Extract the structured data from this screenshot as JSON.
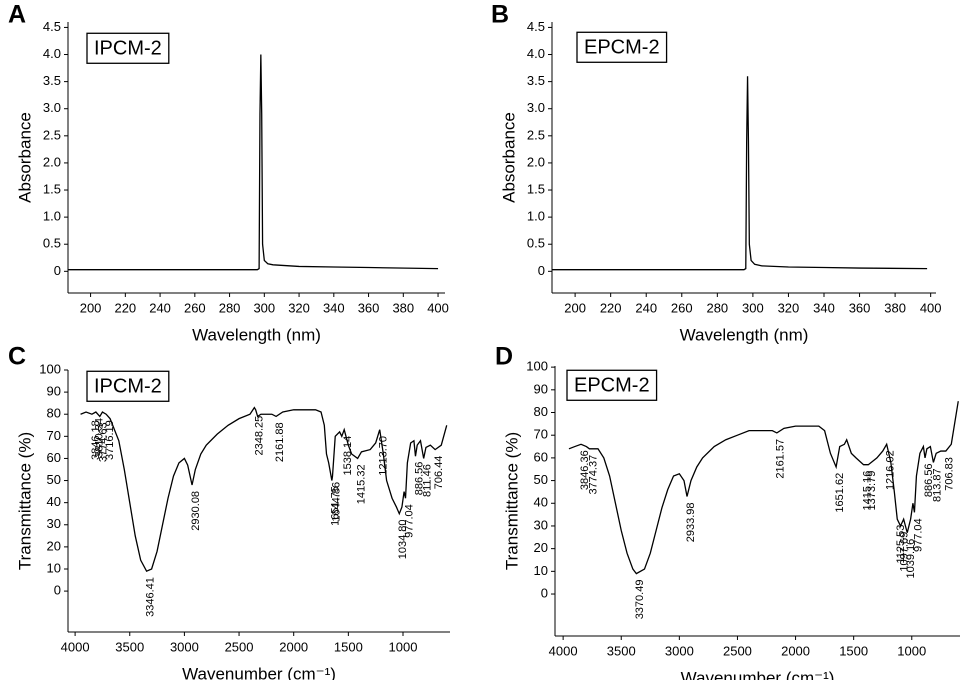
{
  "chart_data": [
    {
      "type": "line",
      "panel": "A",
      "label": "IPCM-2",
      "x_label": "Wavelength (nm)",
      "y_label": "Absorbance",
      "color": "#000000",
      "x": [
        187,
        296,
        297,
        297.5,
        298,
        298.5,
        299,
        300,
        302,
        305,
        320,
        340,
        360,
        400
      ],
      "values": [
        0.03,
        0.03,
        0.05,
        2.9,
        4.0,
        2.9,
        0.5,
        0.2,
        0.14,
        0.12,
        0.09,
        0.08,
        0.07,
        0.05
      ],
      "xlim": [
        187,
        404
      ],
      "xticks": [
        200,
        220,
        240,
        260,
        280,
        300,
        320,
        340,
        360,
        380,
        400
      ],
      "ylim": [
        -0.4,
        4.6
      ],
      "yticks": [
        0,
        0.5,
        {
          "value": 1,
          "label": "1.0"
        },
        1.5,
        {
          "value": 2,
          "label": "2.0"
        },
        2.5,
        {
          "value": 3,
          "label": "3.0"
        },
        3.5,
        {
          "value": 4,
          "label": "4.0"
        },
        4.5
      ]
    },
    {
      "type": "line",
      "panel": "B",
      "label": "EPCM-2",
      "x_label": "Wavelength (nm)",
      "y_label": "Absorbance",
      "color": "#000000",
      "x": [
        187,
        295,
        296,
        296.5,
        297,
        297.5,
        298,
        299,
        301,
        305,
        320,
        340,
        360,
        398
      ],
      "values": [
        0.03,
        0.03,
        0.05,
        2.4,
        3.6,
        2.4,
        0.5,
        0.2,
        0.13,
        0.1,
        0.08,
        0.07,
        0.06,
        0.05
      ],
      "xlim": [
        187,
        403
      ],
      "xticks": [
        200,
        220,
        240,
        260,
        280,
        300,
        320,
        340,
        360,
        380,
        400
      ],
      "ylim": [
        -0.4,
        4.6
      ],
      "yticks": [
        0,
        0.5,
        {
          "value": 1,
          "label": "1.0"
        },
        1.5,
        {
          "value": 2,
          "label": "2.0"
        },
        2.5,
        {
          "value": 3,
          "label": "3.0"
        },
        3.5,
        {
          "value": 4,
          "label": "4.0"
        },
        4.5
      ]
    },
    {
      "type": "line",
      "panel": "C",
      "label": "IPCM-2",
      "x_label": "Wavenumber (cm⁻¹)",
      "y_label": "Transmittance (%)",
      "color": "#000000",
      "x": [
        3950,
        3900,
        3846,
        3810,
        3774,
        3750,
        3716,
        3680,
        3600,
        3550,
        3500,
        3450,
        3400,
        3346,
        3300,
        3250,
        3200,
        3150,
        3100,
        3050,
        3000,
        2970,
        2930,
        2900,
        2850,
        2800,
        2700,
        2600,
        2500,
        2400,
        2360,
        2348,
        2330,
        2300,
        2200,
        2161,
        2100,
        2000,
        1900,
        1800,
        1750,
        1720,
        1700,
        1680,
        1651,
        1645,
        1620,
        1580,
        1560,
        1538,
        1500,
        1470,
        1415,
        1380,
        1300,
        1250,
        1213,
        1180,
        1150,
        1100,
        1060,
        1034,
        1010,
        990,
        977,
        960,
        930,
        900,
        886,
        870,
        840,
        811,
        790,
        750,
        706,
        650,
        600
      ],
      "values": [
        80,
        81,
        80,
        81,
        79,
        81,
        80,
        78,
        68,
        55,
        40,
        25,
        14,
        9,
        10,
        18,
        30,
        42,
        52,
        58,
        60,
        57,
        48,
        55,
        62,
        66,
        71,
        75,
        78,
        80,
        83,
        82,
        79,
        80,
        80,
        79,
        81,
        82,
        82,
        82,
        81,
        75,
        62,
        58,
        50,
        52,
        70,
        72,
        70,
        73,
        66,
        62,
        60,
        63,
        64,
        67,
        73,
        62,
        50,
        42,
        38,
        35,
        38,
        45,
        42,
        58,
        67,
        68,
        61,
        66,
        68,
        60,
        65,
        66,
        64,
        66,
        75
      ],
      "peak_labels": [
        3846.18,
        3810.34,
        3774.63,
        3716.19,
        3346.41,
        2930.08,
        2348.25,
        2161.88,
        1651.75,
        1644.86,
        1538.14,
        1415.32,
        {
          "value": 1213.7,
          "label": "1213.70"
        },
        {
          "value": 1034.8,
          "label": "1034.80"
        },
        977.04,
        886.56,
        811.46,
        706.44
      ],
      "xlim": [
        4065,
        570
      ],
      "xticks": [
        4000,
        3500,
        3000,
        2500,
        2000,
        1500,
        1000
      ],
      "ylim": [
        -18.5,
        100
      ],
      "yticks": [
        0,
        10,
        20,
        30,
        40,
        50,
        60,
        70,
        80,
        90,
        100
      ]
    },
    {
      "type": "line",
      "panel": "D",
      "label": "EPCM-2",
      "x_label": "Wavenumber (cm⁻¹)",
      "y_label": "Transmittance (%)",
      "color": "#000000",
      "x": [
        3950,
        3900,
        3846,
        3800,
        3774,
        3700,
        3650,
        3600,
        3550,
        3500,
        3450,
        3400,
        3370,
        3300,
        3250,
        3200,
        3150,
        3100,
        3050,
        3000,
        2960,
        2934,
        2900,
        2850,
        2800,
        2700,
        2600,
        2500,
        2400,
        2300,
        2200,
        2161,
        2100,
        2000,
        1900,
        1800,
        1750,
        1700,
        1651,
        1620,
        1580,
        1560,
        1520,
        1480,
        1415,
        1374,
        1300,
        1250,
        1216,
        1180,
        1150,
        1125,
        1097,
        1070,
        1039,
        1010,
        990,
        977,
        960,
        930,
        900,
        886,
        870,
        840,
        814,
        790,
        750,
        707,
        660,
        600
      ],
      "values": [
        64,
        65,
        66,
        65,
        64,
        64,
        60,
        52,
        40,
        28,
        18,
        11,
        9,
        11,
        18,
        28,
        38,
        46,
        52,
        53,
        50,
        43,
        50,
        56,
        60,
        65,
        68,
        70,
        72,
        72,
        72,
        71,
        73,
        74,
        74,
        74,
        72,
        62,
        56,
        65,
        66,
        68,
        62,
        60,
        57,
        57,
        60,
        63,
        66,
        58,
        45,
        33,
        30,
        33,
        27,
        33,
        40,
        36,
        52,
        62,
        65,
        60,
        64,
        65,
        58,
        62,
        63,
        63,
        66,
        85
      ],
      "peak_labels": [
        3846.36,
        3774.37,
        3370.49,
        2933.98,
        2161.57,
        1651.62,
        1415.16,
        1373.79,
        1216.02,
        1125.53,
        1097.69,
        1039.16,
        977.04,
        886.56,
        813.87,
        706.83
      ],
      "xlim": [
        4070,
        585
      ],
      "xticks": [
        4000,
        3500,
        3000,
        2500,
        2000,
        1500,
        1000
      ],
      "ylim": [
        -18.5,
        100.5
      ],
      "yticks": [
        0,
        10,
        20,
        30,
        40,
        50,
        60,
        70,
        80,
        90,
        100
      ]
    }
  ]
}
